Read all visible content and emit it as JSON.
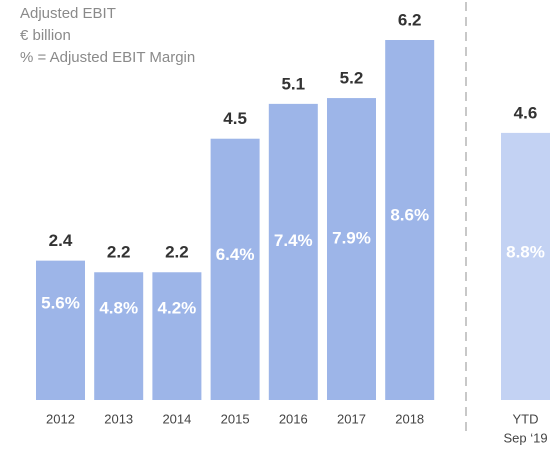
{
  "chart_data": {
    "type": "bar",
    "title": "Adjusted EBIT",
    "subtitle": "€ billion",
    "note": "% = Adjusted EBIT Margin",
    "categories": [
      [
        "2012"
      ],
      [
        "2013"
      ],
      [
        "2014"
      ],
      [
        "2015"
      ],
      [
        "2016"
      ],
      [
        "2017"
      ],
      [
        "2018"
      ],
      [
        "YTD",
        "Sep ‘19"
      ]
    ],
    "values": [
      2.4,
      2.2,
      2.2,
      4.5,
      5.1,
      5.2,
      6.2,
      4.6
    ],
    "colors": [
      "#9db5e8",
      "#9db5e8",
      "#9db5e8",
      "#9db5e8",
      "#9db5e8",
      "#9db5e8",
      "#9db5e8",
      "#c3d2f3"
    ],
    "margins": {
      "values": [
        5.6,
        4.8,
        4.2,
        6.4,
        7.4,
        7.9,
        8.6,
        8.8
      ],
      "value_labels": [
        "5.6%",
        "4.8%",
        "4.2%",
        "6.4%",
        "7.4%",
        "7.9%",
        "8.6%",
        "8.8%"
      ]
    }
  }
}
